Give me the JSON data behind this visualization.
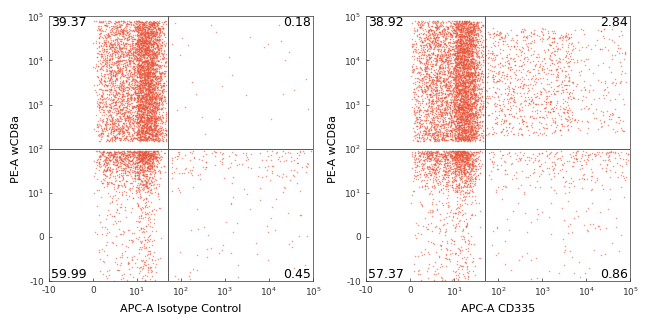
{
  "panel1": {
    "xlabel": "APC-A Isotype Control",
    "ylabel": "PE-A wCD8a",
    "quadrant_labels": {
      "UL": "39.37",
      "UR": "0.18",
      "LL": "59.99",
      "LR": "0.45"
    },
    "vline_val": 50,
    "hline_val": 100
  },
  "panel2": {
    "xlabel": "APC-A CD335",
    "ylabel": "PE-A wCD8a",
    "quadrant_labels": {
      "UL": "38.92",
      "UR": "2.84",
      "LL": "57.37",
      "LR": "0.86"
    },
    "vline_val": 50,
    "hline_val": 100
  },
  "dot_color": "#e8553a",
  "bg_color": "#ffffff",
  "tick_color": "#333333",
  "line_color": "#555555",
  "label_fontsize": 8,
  "quadrant_fontsize": 9,
  "tick_fontsize": 6.5,
  "n_main": 5000,
  "n_ll": 1500,
  "n_sparse": 300,
  "seed1": 7,
  "seed2": 13
}
